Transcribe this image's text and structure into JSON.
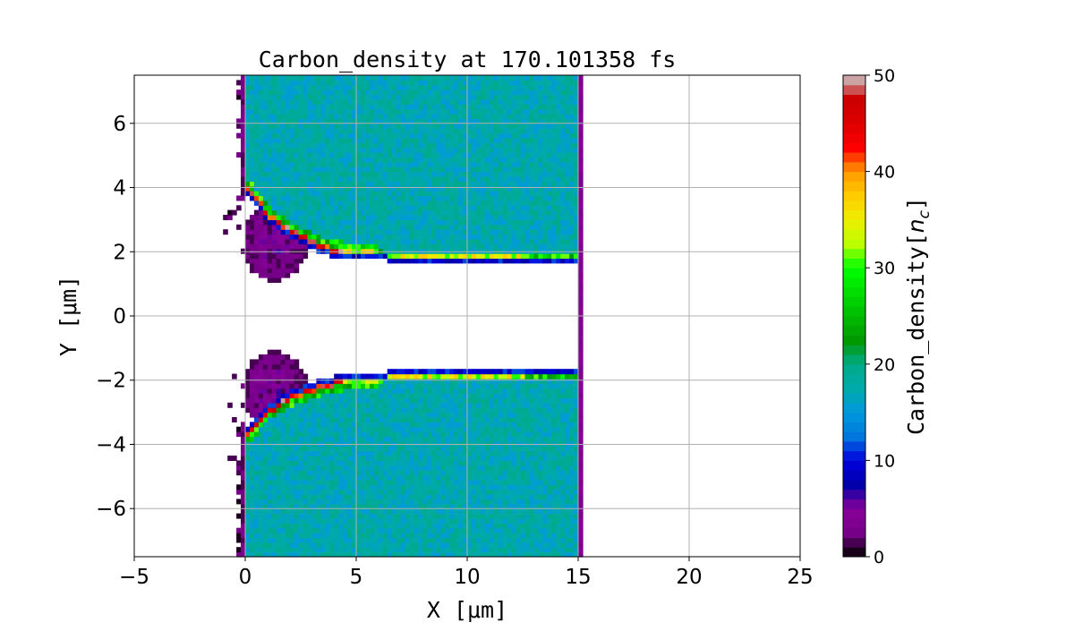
{
  "chart_data": {
    "type": "heatmap",
    "title": "Carbon_density at 170.101358 fs",
    "xlabel": "X [μm]",
    "ylabel": "Y [μm]",
    "xlim": [
      -5,
      25
    ],
    "ylim": [
      -7.5,
      7.5
    ],
    "xticks": [
      -5,
      0,
      5,
      10,
      15,
      20,
      25
    ],
    "yticks": [
      -6,
      -4,
      -2,
      0,
      2,
      4,
      6
    ],
    "grid": true,
    "colormap": "nipy_spectral",
    "colorbar": {
      "label": "Carbon_density[n_c]",
      "label_main": "Carbon_density[",
      "label_math": "n",
      "label_sub": "c",
      "label_close": "]",
      "clim": [
        0,
        50
      ],
      "ticks": [
        0,
        10,
        20,
        30,
        40,
        50
      ],
      "levels": 50,
      "placement": "right"
    },
    "regions": {
      "slab_x_range": [
        0,
        15.1
      ],
      "upper_slab": {
        "y_range": [
          1.8,
          7.5
        ],
        "typical_density": [
          15,
          20
        ]
      },
      "lower_slab": {
        "y_range": [
          -7.5,
          -1.8
        ],
        "typical_density": [
          15,
          20
        ]
      },
      "compressed_layer_upper": {
        "x": [
          0.2,
          1,
          2,
          3,
          4,
          7,
          15
        ],
        "y": [
          3.9,
          3.1,
          2.6,
          2.25,
          2.0,
          1.85,
          1.8
        ],
        "peak_density": 48
      },
      "compressed_layer_lower": {
        "x": [
          0.2,
          1,
          2,
          3,
          4.5,
          7,
          15
        ],
        "y": [
          -3.6,
          -2.9,
          -2.5,
          -2.2,
          -1.95,
          -1.85,
          -1.8
        ],
        "peak_density": 48
      },
      "low_density_plume_upper": {
        "x_range": [
          0,
          2.8
        ],
        "y_range": [
          1.1,
          3.5
        ],
        "density": [
          1,
          6
        ]
      },
      "low_density_plume_lower": {
        "x_range": [
          0,
          2.8
        ],
        "y_range": [
          -3.5,
          -1.1
        ],
        "density": [
          1,
          6
        ]
      },
      "left_edge_speckle_x": [
        -1.2,
        0
      ]
    }
  }
}
